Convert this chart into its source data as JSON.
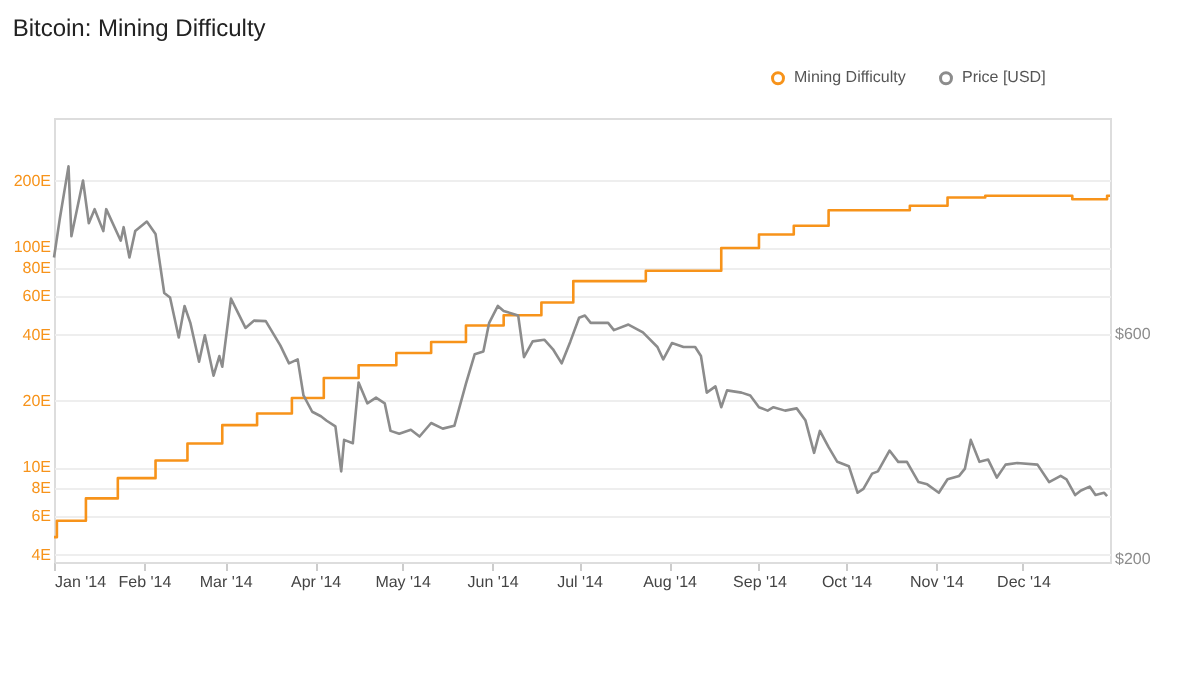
{
  "chart_data": {
    "type": "line",
    "title": "Bitcoin: Mining Difficulty",
    "xlim": [
      "2014-01-01",
      "2014-12-31"
    ],
    "xticks": [
      {
        "value": "2014-01-01",
        "label": "Jan '14"
      },
      {
        "value": "2014-02-01",
        "label": "Feb '14"
      },
      {
        "value": "2014-03-01",
        "label": "Mar '14"
      },
      {
        "value": "2014-04-01",
        "label": "Apr '14"
      },
      {
        "value": "2014-05-01",
        "label": "May '14"
      },
      {
        "value": "2014-06-01",
        "label": "Jun '14"
      },
      {
        "value": "2014-07-01",
        "label": "Jul '14"
      },
      {
        "value": "2014-08-01",
        "label": "Aug '14"
      },
      {
        "value": "2014-09-01",
        "label": "Sep '14"
      },
      {
        "value": "2014-10-01",
        "label": "Oct '14"
      },
      {
        "value": "2014-11-01",
        "label": "Nov '14"
      },
      {
        "value": "2014-12-01",
        "label": "Dec '14"
      }
    ],
    "ylim": [
      3.7,
      386
    ],
    "log": "y",
    "yticks": [
      {
        "value": 4,
        "label": "4E"
      },
      {
        "value": 6,
        "label": "6E"
      },
      {
        "value": 8,
        "label": "8E"
      },
      {
        "value": 10,
        "label": "10E"
      },
      {
        "value": 20,
        "label": "20E"
      },
      {
        "value": 40,
        "label": "40E"
      },
      {
        "value": 60,
        "label": "60E"
      },
      {
        "value": 80,
        "label": "80E"
      },
      {
        "value": 100,
        "label": "100E"
      },
      {
        "value": 200,
        "label": "200E"
      }
    ],
    "y2lim": [
      195,
      984
    ],
    "y2ticks": [
      {
        "value": 200,
        "label": "$200"
      },
      {
        "value": 600,
        "label": "$600"
      }
    ],
    "grid": "y",
    "legend": "top right",
    "series": [
      {
        "name": "Mining Difficulty",
        "color": "#f7931a",
        "type": "step",
        "x": [
          "2014-01-01",
          "2014-01-02",
          "2014-01-12",
          "2014-01-23",
          "2014-02-05",
          "2014-02-16",
          "2014-02-28",
          "2014-03-12",
          "2014-03-24",
          "2014-04-04",
          "2014-04-16",
          "2014-04-29",
          "2014-05-11",
          "2014-05-23",
          "2014-06-05",
          "2014-06-18",
          "2014-06-29",
          "2014-07-24",
          "2014-08-19",
          "2014-09-01",
          "2014-09-13",
          "2014-09-25",
          "2014-10-23",
          "2014-11-05",
          "2014-11-18",
          "2014-12-18",
          "2014-12-30",
          "2014-12-31"
        ],
        "values": [
          4.8,
          5.7,
          7.2,
          8.9,
          10.7,
          12.8,
          15.5,
          17.5,
          20.6,
          25.4,
          29,
          33,
          37,
          44,
          49,
          56,
          70,
          78,
          99,
          114,
          125,
          147,
          154,
          168,
          171,
          165,
          171,
          171
        ]
      },
      {
        "name": "Price [USD]",
        "color": "#8c8c8c",
        "axis": "y2",
        "x": [
          "2014-01-01",
          "2014-01-03",
          "2014-01-06",
          "2014-01-07",
          "2014-01-11",
          "2014-01-13",
          "2014-01-15",
          "2014-01-18",
          "2014-01-19",
          "2014-01-24",
          "2014-01-25",
          "2014-01-27",
          "2014-01-29",
          "2014-02-02",
          "2014-02-05",
          "2014-02-08",
          "2014-02-10",
          "2014-02-13",
          "2014-02-15",
          "2014-02-17",
          "2014-02-20",
          "2014-02-22",
          "2014-02-25",
          "2014-02-27",
          "2014-02-28",
          "2014-03-03",
          "2014-03-08",
          "2014-03-11",
          "2014-03-15",
          "2014-03-20",
          "2014-03-23",
          "2014-03-26",
          "2014-03-28",
          "2014-03-31",
          "2014-04-03",
          "2014-04-05",
          "2014-04-08",
          "2014-04-10",
          "2014-04-11",
          "2014-04-14",
          "2014-04-16",
          "2014-04-19",
          "2014-04-22",
          "2014-04-25",
          "2014-04-27",
          "2014-04-30",
          "2014-05-04",
          "2014-05-07",
          "2014-05-11",
          "2014-05-15",
          "2014-05-19",
          "2014-05-23",
          "2014-05-26",
          "2014-05-29",
          "2014-05-31",
          "2014-06-03",
          "2014-06-05",
          "2014-06-10",
          "2014-06-12",
          "2014-06-15",
          "2014-06-19",
          "2014-06-22",
          "2014-06-25",
          "2014-06-28",
          "2014-07-01",
          "2014-07-03",
          "2014-07-05",
          "2014-07-11",
          "2014-07-13",
          "2014-07-18",
          "2014-07-23",
          "2014-07-28",
          "2014-07-30",
          "2014-08-02",
          "2014-08-06",
          "2014-08-10",
          "2014-08-12",
          "2014-08-14",
          "2014-08-17",
          "2014-08-19",
          "2014-08-21",
          "2014-08-26",
          "2014-08-29",
          "2014-09-01",
          "2014-09-04",
          "2014-09-06",
          "2014-09-10",
          "2014-09-14",
          "2014-09-17",
          "2014-09-20",
          "2014-09-22",
          "2014-09-25",
          "2014-09-28",
          "2014-10-02",
          "2014-10-05",
          "2014-10-07",
          "2014-10-10",
          "2014-10-12",
          "2014-10-16",
          "2014-10-19",
          "2014-10-22",
          "2014-10-26",
          "2014-10-29",
          "2014-11-02",
          "2014-11-05",
          "2014-11-09",
          "2014-11-11",
          "2014-11-13",
          "2014-11-16",
          "2014-11-19",
          "2014-11-22",
          "2014-11-25",
          "2014-11-29",
          "2014-12-06",
          "2014-12-10",
          "2014-12-14",
          "2014-12-16",
          "2014-12-19",
          "2014-12-21",
          "2014-12-24",
          "2014-12-26",
          "2014-12-29",
          "2014-12-30"
        ],
        "values": [
          736,
          805,
          898,
          774,
          873,
          797,
          822,
          783,
          822,
          766,
          790,
          736,
          783,
          800,
          778,
          673,
          665,
          594,
          650,
          620,
          551,
          598,
          526,
          561,
          542,
          663,
          611,
          624,
          623,
          580,
          548,
          555,
          491,
          462,
          454,
          446,
          436,
          356,
          412,
          406,
          514,
          477,
          487,
          477,
          428,
          423,
          430,
          418,
          442,
          432,
          437,
          512,
          564,
          569,
          620,
          650,
          641,
          633,
          559,
          587,
          590,
          573,
          548,
          587,
          629,
          633,
          620,
          620,
          607,
          617,
          603,
          577,
          555,
          584,
          577,
          577,
          561,
          496,
          507,
          470,
          500,
          496,
          491,
          470,
          464,
          470,
          464,
          468,
          447,
          389,
          428,
          399,
          373,
          365,
          318,
          325,
          352,
          356,
          393,
          373,
          373,
          337,
          333,
          318,
          342,
          348,
          361,
          412,
          373,
          377,
          345,
          368,
          371,
          368,
          337,
          348,
          342,
          314,
          322,
          329,
          314,
          318,
          312
        ]
      }
    ]
  }
}
